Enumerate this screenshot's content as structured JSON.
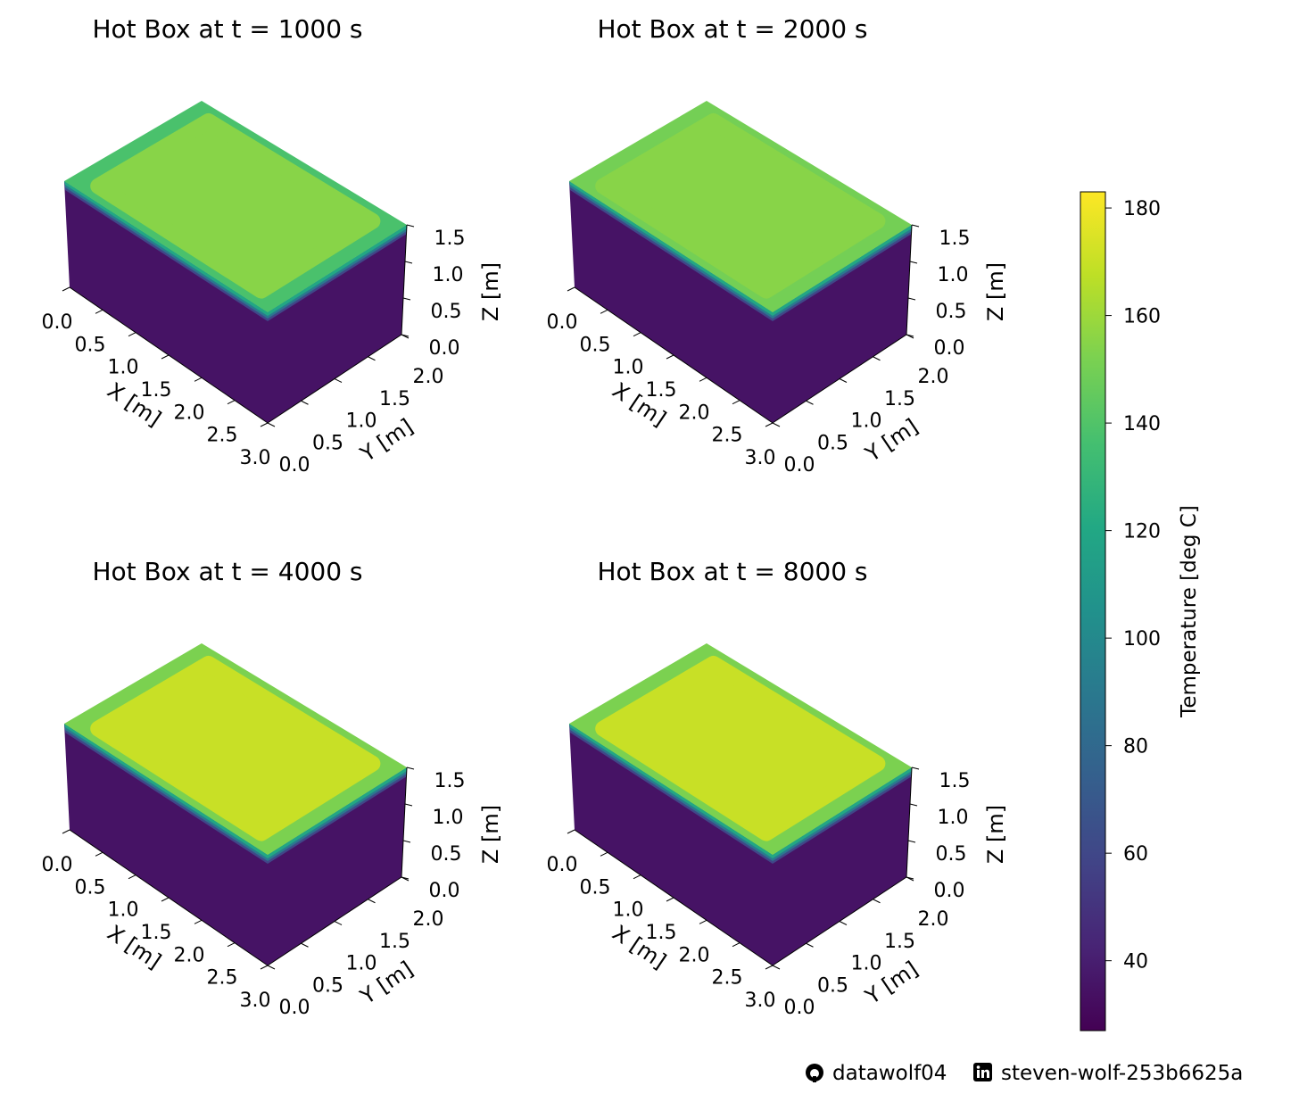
{
  "chart_data": [
    {
      "type": "surface3d",
      "title": "Hot Box at t = 1000 s",
      "xlabel": "X [m]",
      "ylabel": "Y [m]",
      "zlabel": "Z [m]",
      "xlim": [
        0,
        3.0
      ],
      "ylim": [
        0,
        2.0
      ],
      "zlim": [
        0,
        1.5
      ],
      "x_ticks": [
        "0.0",
        "0.5",
        "1.0",
        "1.5",
        "2.0",
        "2.5",
        "3.0"
      ],
      "y_ticks": [
        "0.0",
        "0.5",
        "1.0",
        "1.5",
        "2.0"
      ],
      "z_ticks": [
        "0.0",
        "0.5",
        "1.0",
        "1.5"
      ],
      "top_center_temp": 155,
      "top_rim_temp": 138,
      "side_temp": 35
    },
    {
      "type": "surface3d",
      "title": "Hot Box at t = 2000 s",
      "xlabel": "X [m]",
      "ylabel": "Y [m]",
      "zlabel": "Z [m]",
      "xlim": [
        0,
        3.0
      ],
      "ylim": [
        0,
        2.0
      ],
      "zlim": [
        0,
        1.5
      ],
      "x_ticks": [
        "0.0",
        "0.5",
        "1.0",
        "1.5",
        "2.0",
        "2.5",
        "3.0"
      ],
      "y_ticks": [
        "0.0",
        "0.5",
        "1.0",
        "1.5",
        "2.0"
      ],
      "z_ticks": [
        "0.0",
        "0.5",
        "1.0",
        "1.5"
      ],
      "top_center_temp": 155,
      "top_rim_temp": 150,
      "side_temp": 35
    },
    {
      "type": "surface3d",
      "title": "Hot Box at t = 4000 s",
      "xlabel": "X [m]",
      "ylabel": "Y [m]",
      "zlabel": "Z [m]",
      "xlim": [
        0,
        3.0
      ],
      "ylim": [
        0,
        2.0
      ],
      "zlim": [
        0,
        1.5
      ],
      "x_ticks": [
        "0.0",
        "0.5",
        "1.0",
        "1.5",
        "2.0",
        "2.5",
        "3.0"
      ],
      "y_ticks": [
        "0.0",
        "0.5",
        "1.0",
        "1.5",
        "2.0"
      ],
      "z_ticks": [
        "0.0",
        "0.5",
        "1.0",
        "1.5"
      ],
      "top_center_temp": 170,
      "top_rim_temp": 152,
      "side_temp": 35
    },
    {
      "type": "surface3d",
      "title": "Hot Box at t = 8000 s",
      "xlabel": "X [m]",
      "ylabel": "Y [m]",
      "zlabel": "Z [m]",
      "xlim": [
        0,
        3.0
      ],
      "ylim": [
        0,
        2.0
      ],
      "zlim": [
        0,
        1.5
      ],
      "x_ticks": [
        "0.0",
        "0.5",
        "1.0",
        "1.5",
        "2.0",
        "2.5",
        "3.0"
      ],
      "y_ticks": [
        "0.0",
        "0.5",
        "1.0",
        "1.5",
        "2.0"
      ],
      "z_ticks": [
        "0.0",
        "0.5",
        "1.0",
        "1.5"
      ],
      "top_center_temp": 170,
      "top_rim_temp": 152,
      "side_temp": 35
    }
  ],
  "colorbar": {
    "label": "Temperature [deg C]",
    "vmin": 27,
    "vmax": 183,
    "ticks": [
      40,
      60,
      80,
      100,
      120,
      140,
      160,
      180
    ],
    "colormap": "viridis"
  },
  "footer": {
    "github_icon": "github-icon",
    "github_handle": "datawolf04",
    "linkedin_icon": "linkedin-icon",
    "linkedin_handle": "steven-wolf-253b6625a"
  }
}
